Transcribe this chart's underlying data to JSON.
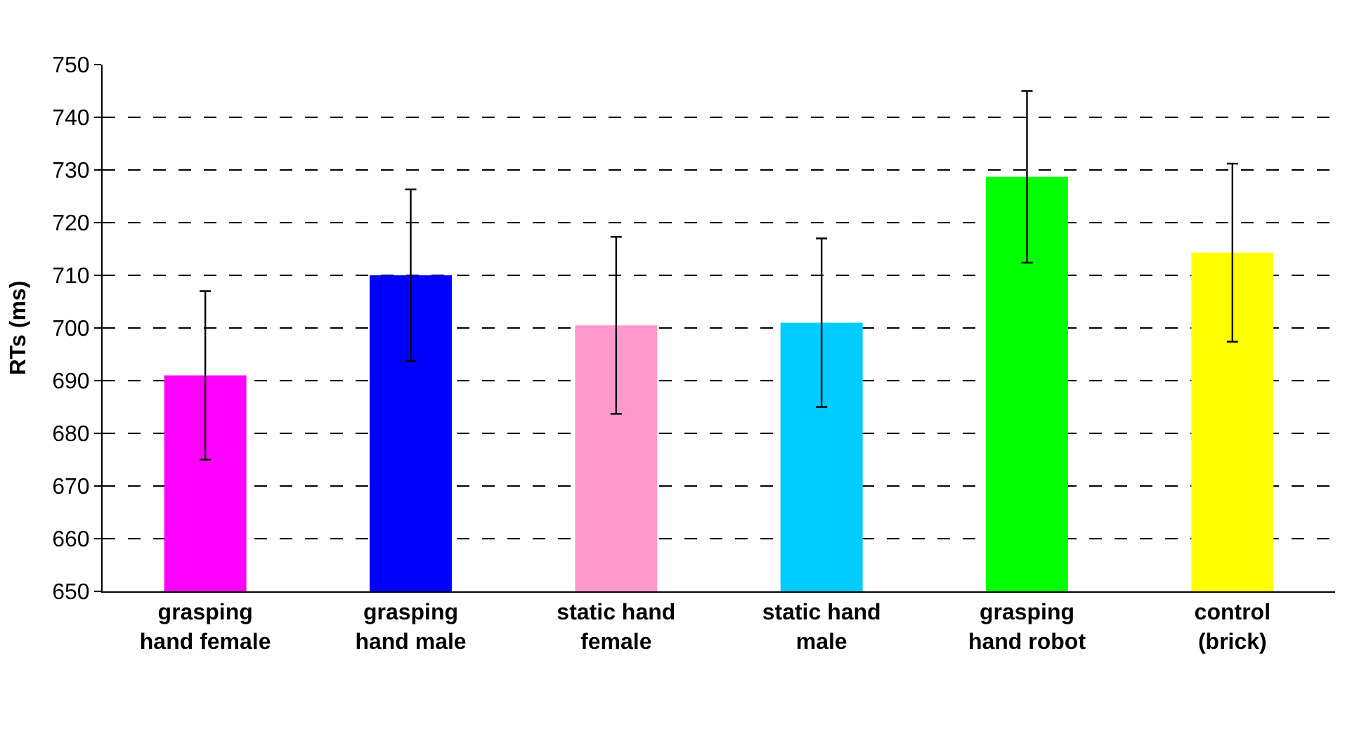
{
  "chart_data": {
    "type": "bar",
    "ylabel": "RTs (ms)",
    "categories": [
      "grasping\nhand female",
      "grasping\nhand male",
      "static hand\nfemale",
      "static hand\nmale",
      "grasping\nhand robot",
      "control\n(brick)"
    ],
    "values": [
      691,
      710,
      700.5,
      701,
      728.7,
      714.3
    ],
    "colors": [
      "#ff00ff",
      "#0000ff",
      "#ff99cc",
      "#00ccff",
      "#00ff00",
      "#ffff00"
    ],
    "errors": [
      16,
      16.3,
      16.8,
      16,
      16.3,
      16.9
    ],
    "ylim": [
      650,
      750
    ],
    "yticks": [
      650,
      660,
      670,
      680,
      690,
      700,
      710,
      720,
      730,
      740,
      750
    ],
    "grid": "y"
  }
}
